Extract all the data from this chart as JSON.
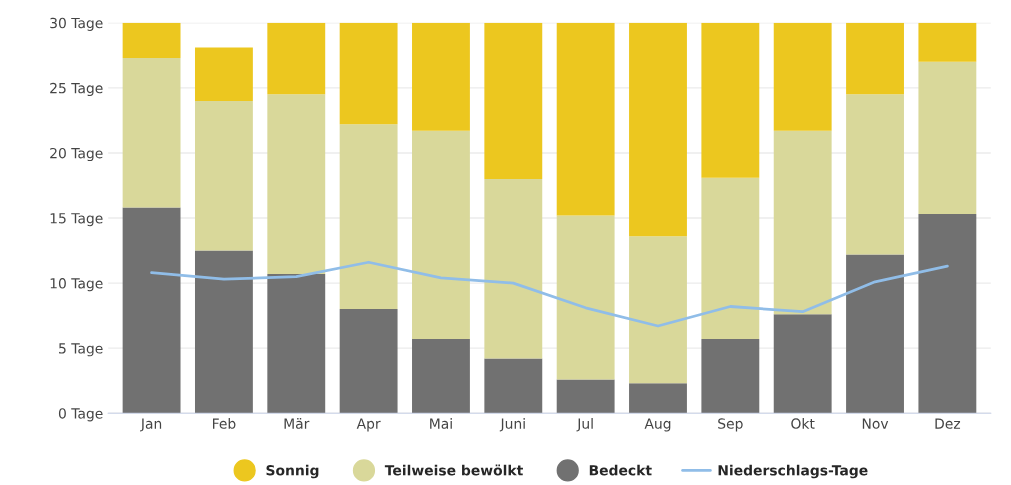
{
  "chart_data": {
    "type": "bar",
    "stacked": true,
    "categories": [
      "Jan",
      "Feb",
      "Mär",
      "Apr",
      "Mai",
      "Juni",
      "Jul",
      "Aug",
      "Sep",
      "Okt",
      "Nov",
      "Dez"
    ],
    "series": [
      {
        "name": "Bedeckt",
        "color": "#717171",
        "values": [
          15.8,
          12.5,
          10.7,
          8.0,
          5.7,
          4.2,
          2.6,
          2.3,
          5.7,
          7.6,
          12.2,
          15.3
        ]
      },
      {
        "name": "Teilweise bewölkt",
        "color": "#d9d89a",
        "values": [
          11.5,
          11.5,
          13.8,
          14.2,
          16.0,
          13.8,
          12.6,
          11.3,
          12.4,
          14.1,
          12.3,
          11.7
        ]
      },
      {
        "name": "Sonnig",
        "color": "#ecc71f",
        "values": [
          2.7,
          4.1,
          5.5,
          7.8,
          8.3,
          12.0,
          14.8,
          16.4,
          11.9,
          8.3,
          5.5,
          3.0
        ]
      },
      {
        "name": "Niederschlags-Tage",
        "type": "line",
        "color": "#90bde8",
        "values": [
          10.8,
          10.3,
          10.5,
          11.6,
          10.4,
          10.0,
          8.1,
          6.7,
          8.2,
          7.8,
          10.1,
          11.3
        ]
      }
    ],
    "ylim": [
      0,
      30
    ],
    "yticks": [
      {
        "value": 0,
        "label": "0 Tage"
      },
      {
        "value": 5,
        "label": "5 Tage"
      },
      {
        "value": 10,
        "label": "10 Tage"
      },
      {
        "value": 15,
        "label": "15 Tage"
      },
      {
        "value": 20,
        "label": "20 Tage"
      },
      {
        "value": 25,
        "label": "25 Tage"
      },
      {
        "value": 30,
        "label": "30 Tage"
      }
    ],
    "grid": "y",
    "legend": "bottom",
    "marker": "none",
    "line_style": "solid"
  }
}
